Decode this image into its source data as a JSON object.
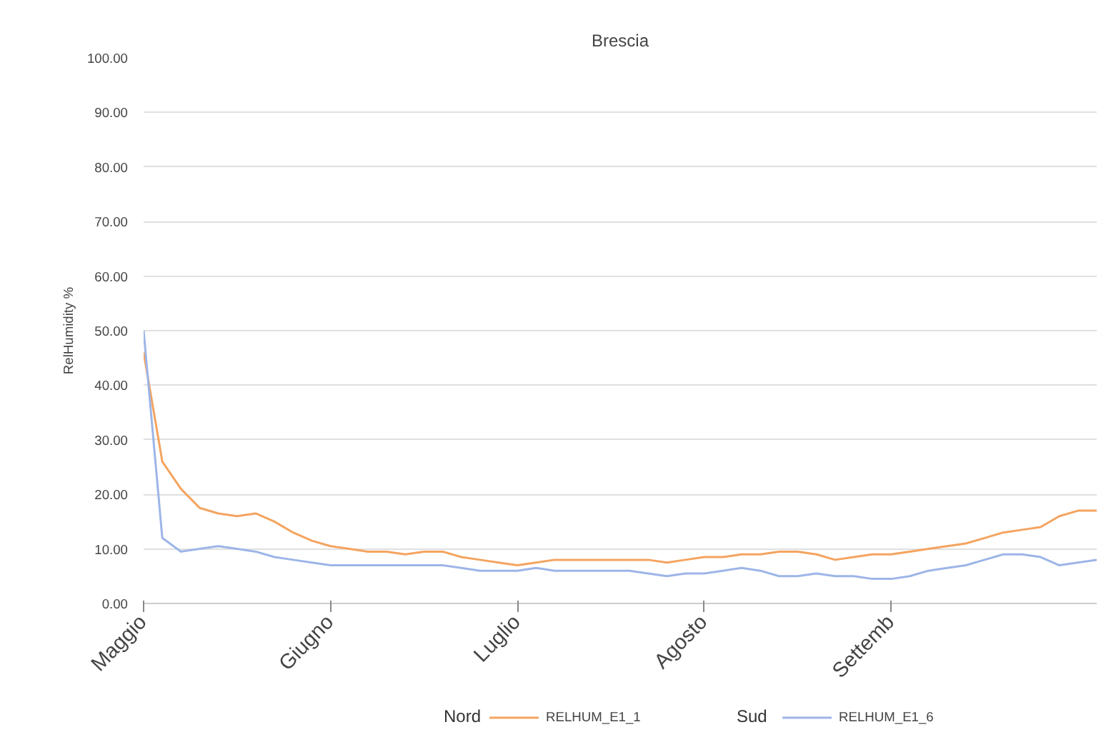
{
  "chart_data": {
    "type": "line",
    "title": "Brescia",
    "ylabel": "RelHumidity %",
    "categories": [
      "Maggio",
      null,
      null,
      null,
      null,
      null,
      null,
      null,
      null,
      null,
      "Giugno",
      null,
      null,
      null,
      null,
      null,
      null,
      null,
      null,
      null,
      "Luglio",
      null,
      null,
      null,
      null,
      null,
      null,
      null,
      null,
      null,
      "Agosto",
      null,
      null,
      null,
      null,
      null,
      null,
      null,
      null,
      null,
      "Settemb",
      null,
      null,
      null,
      null,
      null,
      null,
      null,
      null,
      null,
      null,
      null
    ],
    "ylim": [
      0,
      100
    ],
    "yticks": [
      {
        "value": 0,
        "label": "0.00"
      },
      {
        "value": 10,
        "label": "10.00"
      },
      {
        "value": 20,
        "label": "20.00"
      },
      {
        "value": 30,
        "label": "30.00"
      },
      {
        "value": 40,
        "label": "40.00"
      },
      {
        "value": 50,
        "label": "50.00"
      },
      {
        "value": 60,
        "label": "60.00"
      },
      {
        "value": 70,
        "label": "70.00"
      },
      {
        "value": 80,
        "label": "80.00"
      },
      {
        "value": 90,
        "label": "90.00"
      },
      {
        "value": 100,
        "label": "100.00"
      }
    ],
    "series": [
      {
        "name": "RELHUM_E1_1",
        "color": "#f4a460",
        "values": [
          46,
          26,
          21,
          17.5,
          16.5,
          16,
          16.5,
          15,
          13,
          11.5,
          10.5,
          10,
          9.5,
          9.5,
          9,
          9.5,
          9.5,
          8.5,
          8,
          7.5,
          7,
          7.5,
          8,
          8,
          8,
          8,
          8,
          8,
          7.5,
          8,
          8.5,
          8.5,
          9,
          9,
          9.5,
          9.5,
          9,
          8,
          8.5,
          9,
          9,
          9.5,
          10,
          10.5,
          11,
          12,
          13,
          13.5,
          14,
          16,
          17,
          17
        ]
      },
      {
        "name": "RELHUM_E1_6",
        "color": "#9db5e8",
        "values": [
          50,
          12,
          9.5,
          10,
          10.5,
          10,
          9.5,
          8.5,
          8,
          7.5,
          7,
          7,
          7,
          7,
          7,
          7,
          7,
          6.5,
          6,
          6,
          6,
          6.5,
          6,
          6,
          6,
          6,
          6,
          5.5,
          5,
          5.5,
          5.5,
          6,
          6.5,
          6,
          5,
          5,
          5.5,
          5,
          5,
          4.5,
          4.5,
          5,
          6,
          6.5,
          7,
          8,
          9,
          9,
          8.5,
          7,
          7.5,
          8
        ]
      }
    ],
    "grid": "y",
    "legend": "bottom",
    "annotations": [
      "Nord",
      "Sud"
    ]
  }
}
